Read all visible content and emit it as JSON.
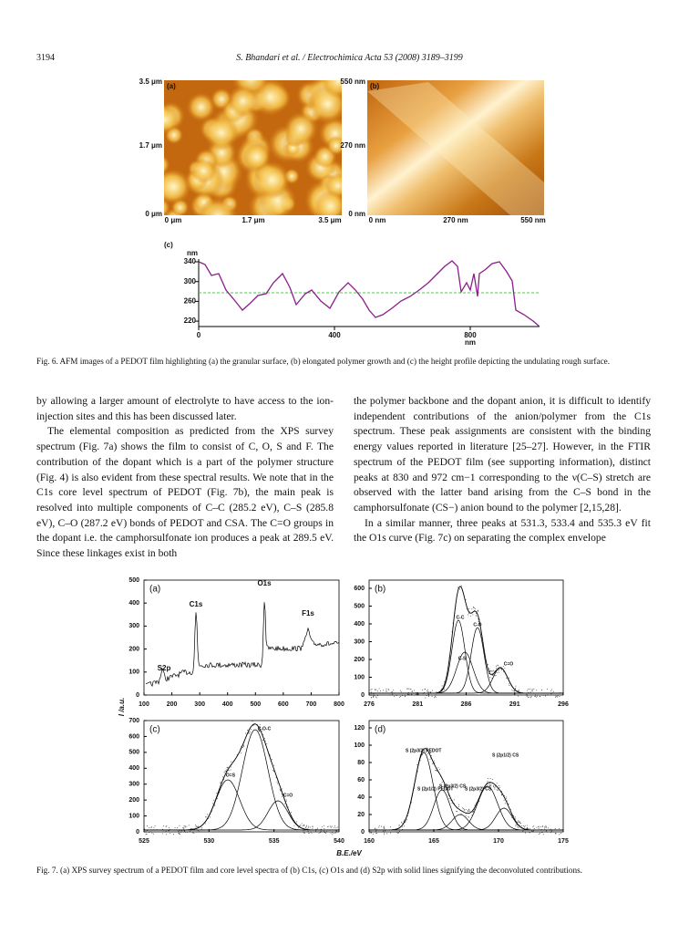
{
  "header": {
    "page_number": "3194",
    "running_title": "S. Bhandari et al. / Electrochimica Acta 53 (2008) 3189–3199"
  },
  "figure_6": {
    "panel_a": {
      "label": "(a)",
      "y_ticks": [
        "3.5 μm",
        "1.7 μm",
        "0 μm"
      ],
      "x_ticks": [
        "0 μm",
        "1.7 μm",
        "3.5 μm"
      ]
    },
    "panel_b": {
      "label": "(b)",
      "y_ticks": [
        "550 nm",
        "270 nm",
        "0 nm"
      ],
      "x_ticks": [
        "0 nm",
        "270 nm",
        "550 nm"
      ]
    },
    "panel_c": {
      "label": "(c)",
      "y_unit": "nm",
      "y_ticks": [
        "340",
        "300",
        "260",
        "220"
      ],
      "x_ticks": [
        "0",
        "400",
        "800"
      ],
      "x_unit": "nm"
    },
    "caption": "Fig. 6. AFM images of a PEDOT film highlighting (a) the granular surface, (b) elongated polymer growth and (c) the height profile depicting the undulating rough surface."
  },
  "body": {
    "left_column": [
      "by allowing a larger amount of electrolyte to have access to the ion-injection sites and this has been discussed later.",
      "The elemental composition as predicted from the XPS survey spectrum (Fig. 7a) shows the film to consist of C, O, S and F. The contribution of the dopant which is a part of the polymer structure (Fig. 4) is also evident from these spectral results. We note that in the C1s core level spectrum of PEDOT (Fig. 7b), the main peak is resolved into multiple components of C–C (285.2 eV), C–S (285.8 eV), C–O (287.2 eV) bonds of PEDOT and CSA. The C=O groups in the dopant i.e. the camphorsulfonate ion produces a peak at 289.5 eV. Since these linkages exist in both"
    ],
    "right_column": [
      "the polymer backbone and the dopant anion, it is difficult to identify independent contributions of the anion/polymer from the C1s spectrum. These peak assignments are consistent with the binding energy values reported in literature [25–27]. However, in the FTIR spectrum of the PEDOT film (see supporting information), distinct peaks at 830 and 972 cm−1 corresponding to the ν(C–S) stretch are observed with the latter band arising from the C–S bond in the camphorsulfonate (CS−) anion bound to the polymer [2,15,28].",
      "In a similar manner, three peaks at 531.3, 533.4 and 535.3 eV fit the O1s curve (Fig. 7c) on separating the complex envelope"
    ]
  },
  "figure_7": {
    "y_axis_label": "I /a.u.",
    "x_axis_label": "B.E./eV",
    "panels": [
      {
        "label": "(a)",
        "y_ticks": [
          "0",
          "100",
          "200",
          "300",
          "400",
          "500"
        ],
        "x_ticks": [
          "100",
          "200",
          "300",
          "400",
          "500",
          "600",
          "700",
          "800"
        ],
        "annotations": [
          "O1s",
          "C1s",
          "F1s",
          "S2p"
        ]
      },
      {
        "label": "(b)",
        "y_ticks": [
          "0",
          "100",
          "200",
          "300",
          "400",
          "500",
          "600"
        ],
        "x_ticks": [
          "276",
          "281",
          "286",
          "291",
          "296"
        ],
        "annotations": [
          "C-C",
          "C-O",
          "C-S",
          "C=O"
        ]
      },
      {
        "label": "(c)",
        "y_ticks": [
          "0",
          "100",
          "200",
          "300",
          "400",
          "500",
          "600",
          "700"
        ],
        "x_ticks": [
          "525",
          "530",
          "535",
          "540"
        ],
        "annotations": [
          "C-O-C",
          "O=S",
          "C=O"
        ]
      },
      {
        "label": "(d)",
        "y_ticks": [
          "0",
          "20",
          "40",
          "60",
          "80",
          "100",
          "120"
        ],
        "x_ticks": [
          "160",
          "165",
          "170",
          "175"
        ],
        "annotations": [
          "S (2p3/2) PEDOT",
          "S (2p1/2) PEDOT",
          "S (2p3/2) CS",
          "S (2p3/2) CS",
          "S (2p1/2) CS"
        ]
      }
    ],
    "caption": "Fig. 7. (a) XPS survey spectrum of a PEDOT film and core level spectra of (b) C1s, (c) O1s and (d) S2p with solid lines signifying the deconvoluted contributions."
  }
}
